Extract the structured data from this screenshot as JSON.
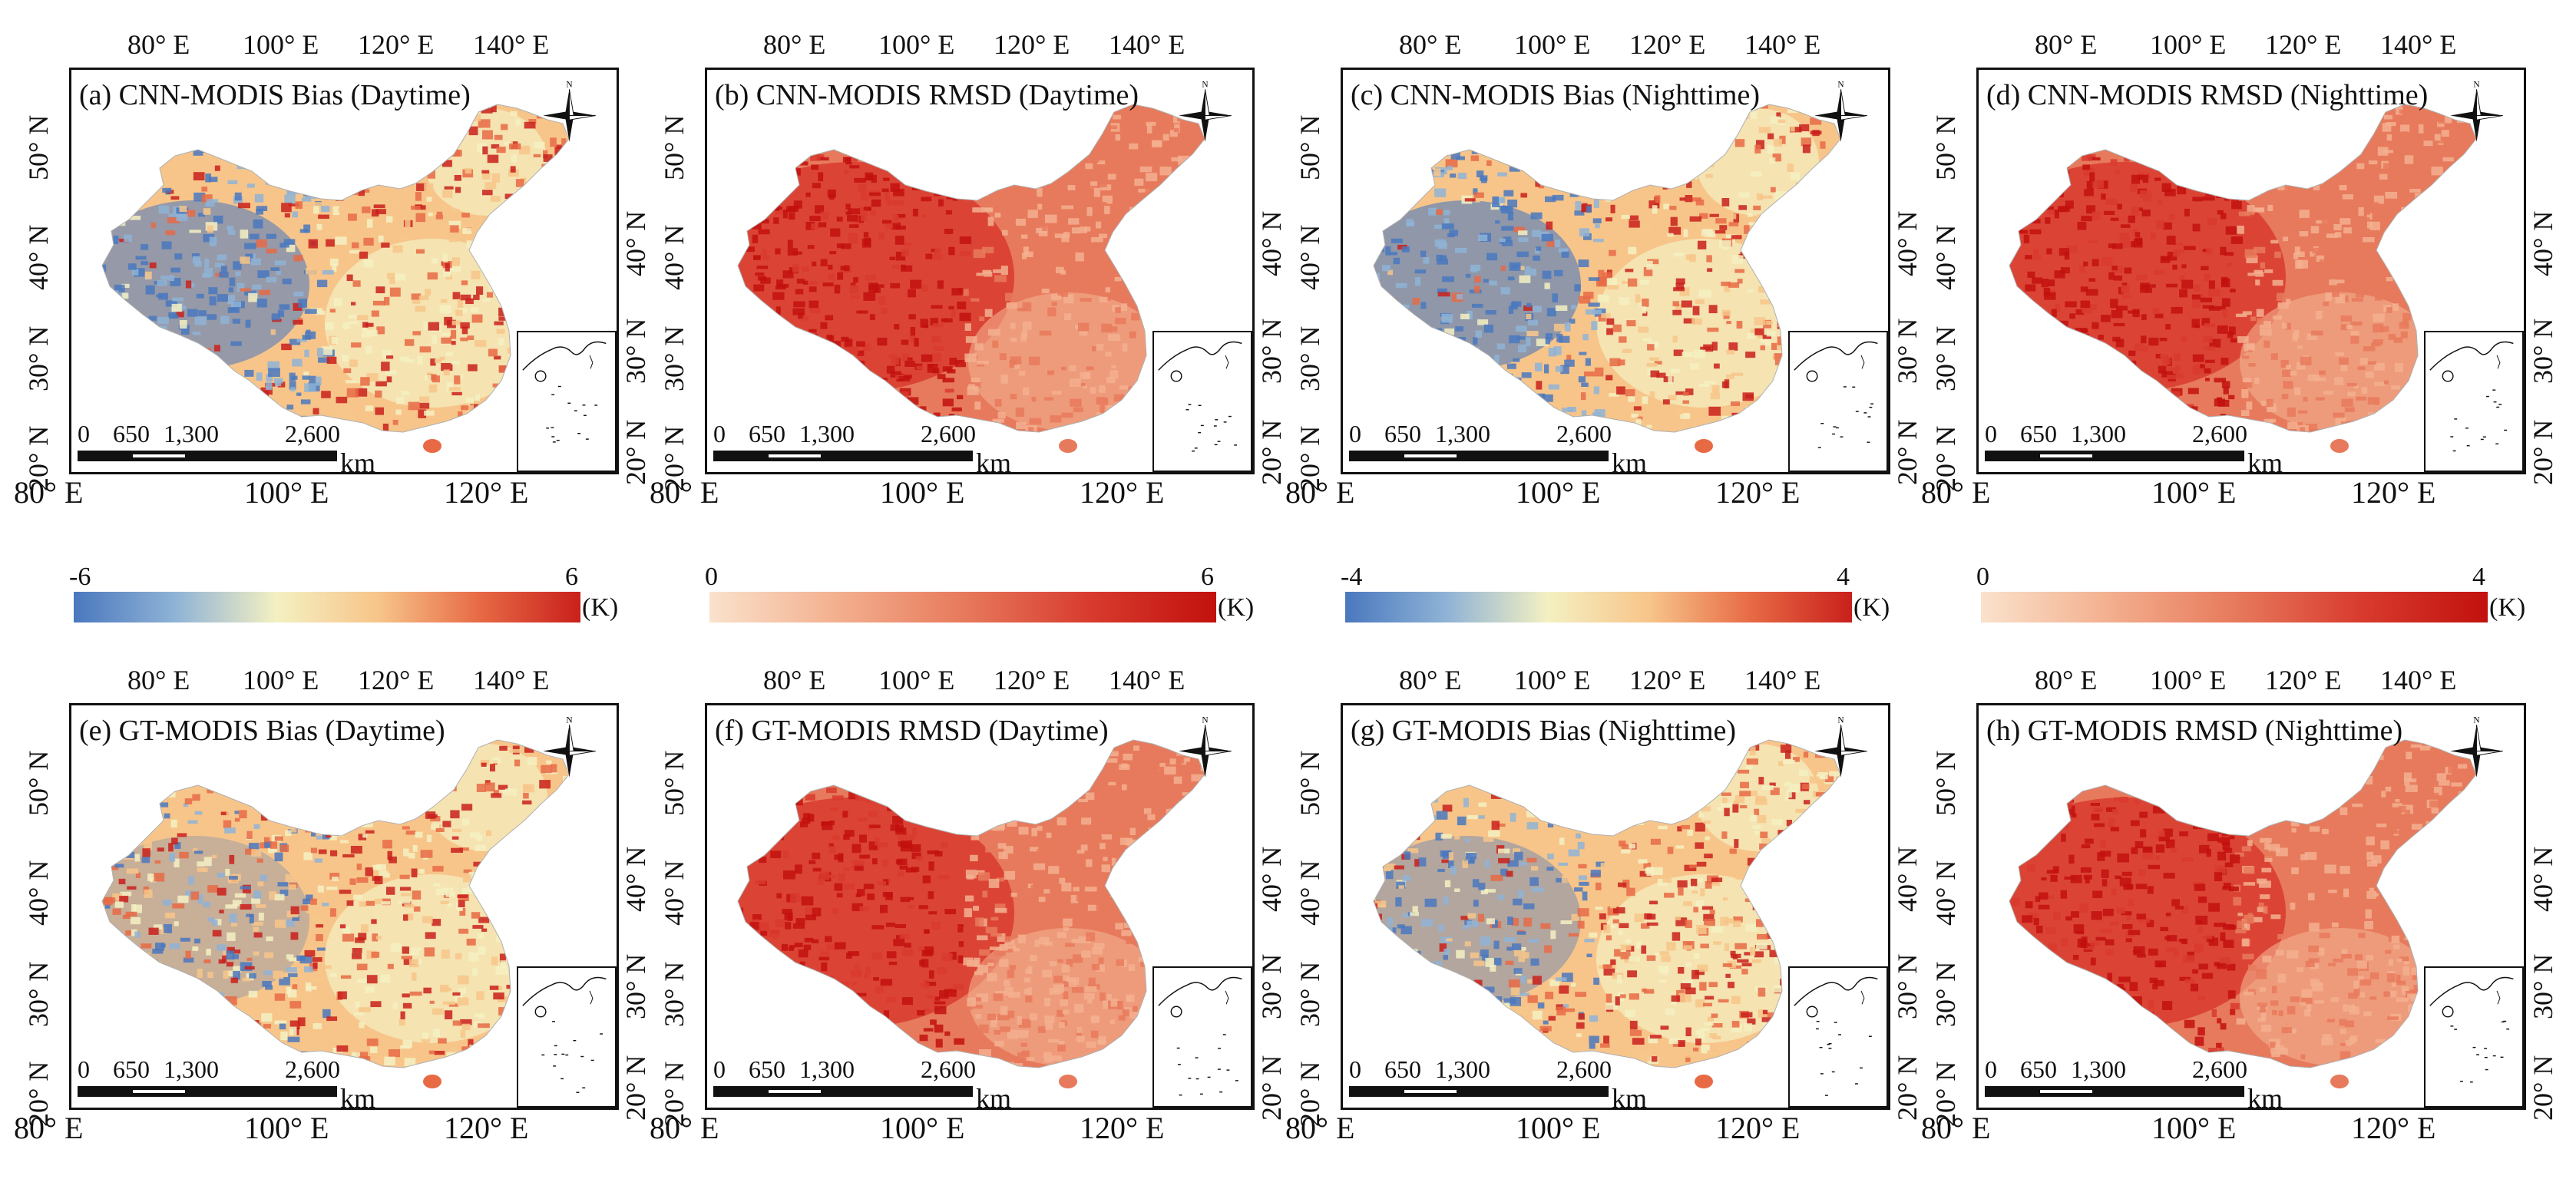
{
  "figure": {
    "panels": [
      {
        "id": "a",
        "title": "(a) CNN-MODIS Bias (Daytime)",
        "scheme": "diverging",
        "seed": 11,
        "blue_bias": 0.7
      },
      {
        "id": "b",
        "title": "(b) CNN-MODIS RMSD (Daytime)",
        "scheme": "sequential",
        "seed": 23,
        "blue_bias": 0.0
      },
      {
        "id": "c",
        "title": "(c) CNN-MODIS Bias (Nighttime)",
        "scheme": "diverging",
        "seed": 37,
        "blue_bias": 0.75
      },
      {
        "id": "d",
        "title": "(d) CNN-MODIS RMSD (Nighttime)",
        "scheme": "sequential",
        "seed": 41,
        "blue_bias": 0.0
      },
      {
        "id": "e",
        "title": "(e) GT-MODIS Bias (Daytime)",
        "scheme": "diverging",
        "seed": 53,
        "blue_bias": 0.35
      },
      {
        "id": "f",
        "title": "(f) GT-MODIS RMSD (Daytime)",
        "scheme": "sequential",
        "seed": 67,
        "blue_bias": 0.0
      },
      {
        "id": "g",
        "title": "(g) GT-MODIS Bias (Nighttime)",
        "scheme": "diverging",
        "seed": 71,
        "blue_bias": 0.5
      },
      {
        "id": "h",
        "title": "(h) GT-MODIS RMSD (Nighttime)",
        "scheme": "sequential",
        "seed": 83,
        "blue_bias": 0.0
      }
    ],
    "axis_labels": {
      "top": [
        "80° E",
        "100° E",
        "120° E",
        "140° E"
      ],
      "bottom": [
        "80° E",
        "100° E",
        "120° E"
      ],
      "left": [
        "50° N",
        "40° N",
        "30° N",
        "20° N"
      ],
      "right": [
        "40° N",
        "30° N",
        "20° N"
      ]
    },
    "scale_bar": {
      "labels": [
        "0",
        "650",
        "1,300",
        "2,600"
      ],
      "unit": "km"
    },
    "north_label": "N",
    "colorbars": [
      {
        "min": "-6",
        "max": "6",
        "unit": "(K)",
        "scheme": "diverging"
      },
      {
        "min": "0",
        "max": "6",
        "unit": "(K)",
        "scheme": "sequential"
      },
      {
        "min": "-4",
        "max": "4",
        "unit": "(K)",
        "scheme": "diverging"
      },
      {
        "min": "0",
        "max": "4",
        "unit": "(K)",
        "scheme": "sequential"
      }
    ],
    "colors": {
      "diverging": [
        "#4a78be",
        "#8fb3d6",
        "#f4f0c2",
        "#f7c58a",
        "#e76a45",
        "#c9201b"
      ],
      "sequential": [
        "#fae2cc",
        "#f3b08f",
        "#e77a5c",
        "#d83b2e",
        "#c2110e"
      ]
    }
  }
}
